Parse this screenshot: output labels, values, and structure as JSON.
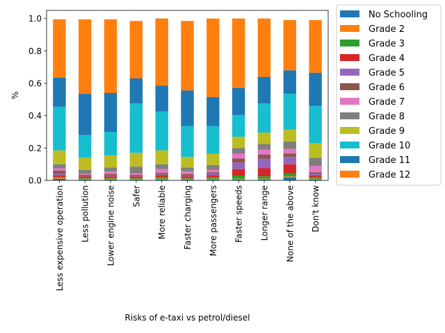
{
  "chart_data": {
    "type": "bar",
    "stacked": true,
    "title": "",
    "xlabel": "Risks of e-taxi vs petrol/diesel",
    "ylabel": "%",
    "ylim": [
      0,
      1.05
    ],
    "yticks": [
      "0.0",
      "0.2",
      "0.4",
      "0.6",
      "0.8",
      "1.0"
    ],
    "grid": false,
    "legend_position": "outside right",
    "categories": [
      "Less expensive operation",
      "Less pollution",
      "Lower engine noise",
      "Safer",
      "More reliable",
      "Faster charging",
      "More passengers",
      "Faster speeds",
      "Longer range",
      "None of the above",
      "Don't know"
    ],
    "series": [
      {
        "name": "No Schooling",
        "color": "#1f77b4",
        "values": [
          0.01,
          0.005,
          0.005,
          0.005,
          0.005,
          0.005,
          0.005,
          0.005,
          0.005,
          0.02,
          0.005
        ]
      },
      {
        "name": "Grade 2",
        "color": "#ff7f0e",
        "values": [
          0.005,
          0.005,
          0.005,
          0.005,
          0.005,
          0.005,
          0.005,
          0.005,
          0.005,
          0.005,
          0.005
        ]
      },
      {
        "name": "Grade 3",
        "color": "#2ca02c",
        "values": [
          0.005,
          0.005,
          0.005,
          0.005,
          0.01,
          0.005,
          0.01,
          0.02,
          0.015,
          0.02,
          0.01
        ]
      },
      {
        "name": "Grade 4",
        "color": "#d62728",
        "values": [
          0.01,
          0.01,
          0.01,
          0.01,
          0.01,
          0.01,
          0.01,
          0.04,
          0.05,
          0.055,
          0.01
        ]
      },
      {
        "name": "Grade 5",
        "color": "#9467bd",
        "values": [
          0.01,
          0.005,
          0.005,
          0.005,
          0.005,
          0.005,
          0.01,
          0.04,
          0.06,
          0.045,
          0.01
        ]
      },
      {
        "name": "Grade 6",
        "color": "#8c564b",
        "values": [
          0.02,
          0.005,
          0.01,
          0.005,
          0.01,
          0.01,
          0.01,
          0.025,
          0.025,
          0.02,
          0.01
        ]
      },
      {
        "name": "Grade 7",
        "color": "#e377c2",
        "values": [
          0.015,
          0.005,
          0.015,
          0.01,
          0.025,
          0.015,
          0.015,
          0.03,
          0.03,
          0.03,
          0.04
        ]
      },
      {
        "name": "Grade 8",
        "color": "#7f7f7f",
        "values": [
          0.025,
          0.025,
          0.025,
          0.04,
          0.03,
          0.025,
          0.03,
          0.035,
          0.035,
          0.045,
          0.05
        ]
      },
      {
        "name": "Grade 9",
        "color": "#bcbd22",
        "values": [
          0.085,
          0.075,
          0.075,
          0.085,
          0.085,
          0.065,
          0.07,
          0.07,
          0.07,
          0.075,
          0.09
        ]
      },
      {
        "name": "Grade 10",
        "color": "#17becf",
        "values": [
          0.27,
          0.14,
          0.145,
          0.305,
          0.24,
          0.19,
          0.17,
          0.135,
          0.18,
          0.22,
          0.23
        ]
      },
      {
        "name": "Grade 11",
        "color": "#1f77b4",
        "values": [
          0.18,
          0.255,
          0.24,
          0.155,
          0.16,
          0.22,
          0.18,
          0.165,
          0.165,
          0.145,
          0.205
        ]
      },
      {
        "name": "Grade 12",
        "color": "#ff7f0e",
        "values": [
          0.36,
          0.46,
          0.455,
          0.355,
          0.415,
          0.43,
          0.485,
          0.43,
          0.36,
          0.31,
          0.325
        ]
      }
    ]
  }
}
